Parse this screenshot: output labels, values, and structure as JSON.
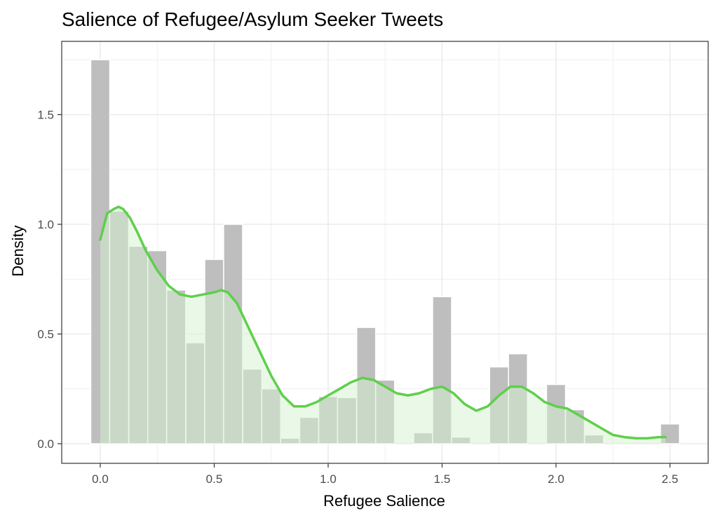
{
  "chart_data": {
    "type": "histogram-with-density",
    "title": "Salience of Refugee/Asylum Seeker Tweets",
    "xlabel": "Refugee Salience",
    "ylabel": "Density",
    "xlim": [
      -0.09,
      2.6
    ],
    "ylim": [
      -0.085,
      1.82
    ],
    "x_ticks": [
      0.0,
      0.5,
      1.0,
      1.5,
      2.0,
      2.5
    ],
    "x_tick_labels": [
      "0.0",
      "0.5",
      "1.0",
      "1.5",
      "2.0",
      "2.5"
    ],
    "y_ticks": [
      0.0,
      0.5,
      1.0,
      1.5
    ],
    "y_tick_labels": [
      "0.0",
      "0.5",
      "1.0",
      "1.5"
    ],
    "grid": true,
    "colors": {
      "bars": "#bebebe",
      "density_line": "#5fcf4c",
      "density_fill": "#d6f2d0",
      "grid": "#ebebeb",
      "panel_border": "#333333"
    },
    "histogram": {
      "bin_width": 0.0833,
      "bins": [
        {
          "x": 0.0,
          "density": 1.75
        },
        {
          "x": 0.083,
          "density": 1.06
        },
        {
          "x": 0.167,
          "density": 0.9
        },
        {
          "x": 0.25,
          "density": 0.88
        },
        {
          "x": 0.333,
          "density": 0.7
        },
        {
          "x": 0.417,
          "density": 0.46
        },
        {
          "x": 0.5,
          "density": 0.84
        },
        {
          "x": 0.583,
          "density": 1.0
        },
        {
          "x": 0.667,
          "density": 0.34
        },
        {
          "x": 0.75,
          "density": 0.25
        },
        {
          "x": 0.833,
          "density": 0.025
        },
        {
          "x": 0.917,
          "density": 0.12
        },
        {
          "x": 1.0,
          "density": 0.215
        },
        {
          "x": 1.083,
          "density": 0.21
        },
        {
          "x": 1.167,
          "density": 0.53
        },
        {
          "x": 1.25,
          "density": 0.29
        },
        {
          "x": 1.333,
          "density": 0.0
        },
        {
          "x": 1.417,
          "density": 0.05
        },
        {
          "x": 1.5,
          "density": 0.67
        },
        {
          "x": 1.583,
          "density": 0.03
        },
        {
          "x": 1.667,
          "density": 0.0
        },
        {
          "x": 1.75,
          "density": 0.35
        },
        {
          "x": 1.833,
          "density": 0.41
        },
        {
          "x": 1.917,
          "density": 0.0
        },
        {
          "x": 2.0,
          "density": 0.27
        },
        {
          "x": 2.083,
          "density": 0.155
        },
        {
          "x": 2.167,
          "density": 0.04
        },
        {
          "x": 2.25,
          "density": 0.0
        },
        {
          "x": 2.333,
          "density": 0.0
        },
        {
          "x": 2.417,
          "density": 0.0
        },
        {
          "x": 2.5,
          "density": 0.09
        }
      ]
    },
    "density_curve": {
      "x": [
        0.0,
        0.03,
        0.06,
        0.08,
        0.1,
        0.13,
        0.16,
        0.2,
        0.25,
        0.3,
        0.35,
        0.4,
        0.45,
        0.5,
        0.53,
        0.56,
        0.6,
        0.65,
        0.7,
        0.75,
        0.8,
        0.85,
        0.9,
        0.95,
        1.0,
        1.05,
        1.1,
        1.15,
        1.2,
        1.25,
        1.3,
        1.35,
        1.4,
        1.45,
        1.5,
        1.55,
        1.6,
        1.65,
        1.7,
        1.75,
        1.8,
        1.85,
        1.9,
        1.95,
        2.0,
        2.05,
        2.1,
        2.15,
        2.2,
        2.25,
        2.3,
        2.35,
        2.4,
        2.45,
        2.48
      ],
      "y": [
        0.93,
        1.05,
        1.07,
        1.08,
        1.07,
        1.03,
        0.97,
        0.88,
        0.79,
        0.72,
        0.68,
        0.67,
        0.68,
        0.69,
        0.7,
        0.69,
        0.64,
        0.53,
        0.42,
        0.31,
        0.22,
        0.17,
        0.17,
        0.19,
        0.22,
        0.25,
        0.28,
        0.3,
        0.29,
        0.26,
        0.23,
        0.22,
        0.23,
        0.25,
        0.26,
        0.23,
        0.18,
        0.15,
        0.17,
        0.22,
        0.26,
        0.26,
        0.23,
        0.19,
        0.17,
        0.16,
        0.13,
        0.1,
        0.07,
        0.04,
        0.03,
        0.025,
        0.025,
        0.03,
        0.03
      ]
    }
  }
}
